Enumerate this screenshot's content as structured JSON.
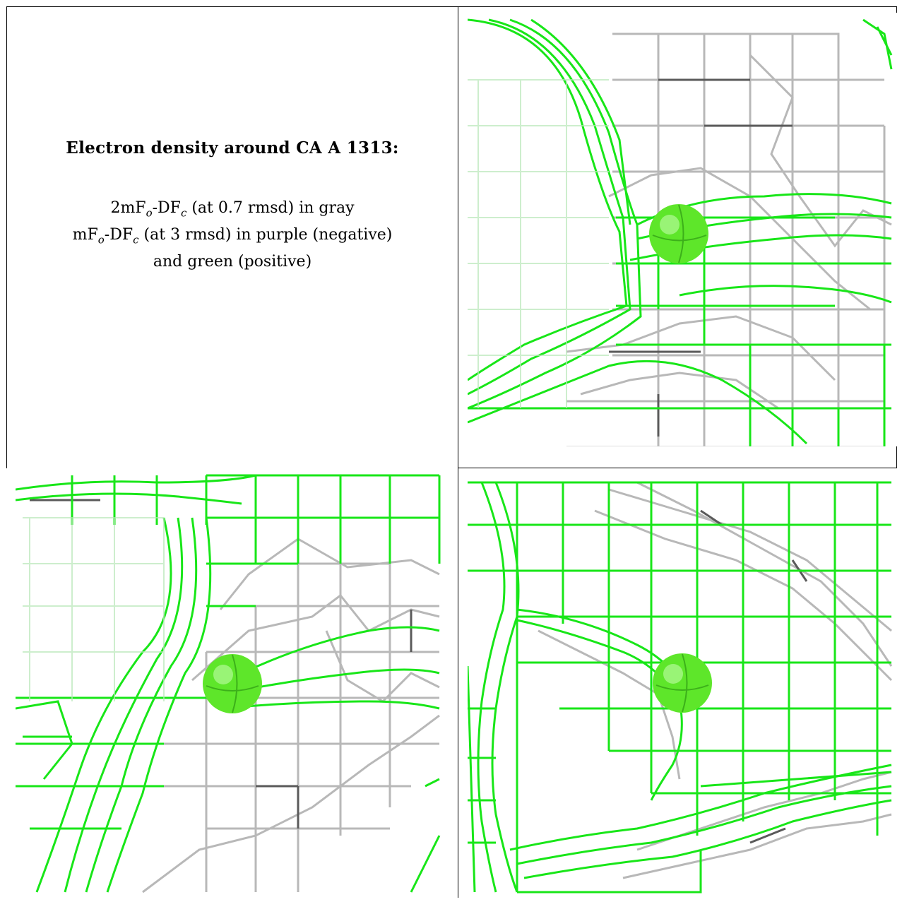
{
  "caption": {
    "title": "Electron density around CA A 1313:",
    "line1": {
      "a": "2mF",
      "b": "o",
      "c": "-DF",
      "d": "c",
      "e": " (at 0.7 rmsd) in gray"
    },
    "line2": {
      "a": "mF",
      "b": "o",
      "c": "-DF",
      "d": "c",
      "e": " (at 3 rmsd) in purple (negative)"
    },
    "line3": "and green (positive)"
  },
  "colors": {
    "green_mesh": "#18e618",
    "gray_mesh": "#b8b8b8",
    "dark_gray_mesh": "#5a5a5a",
    "atom": "#5ee62a",
    "frame": "#000000"
  },
  "panels": [
    {
      "name": "view-top-right",
      "atom_label": "CA A 1313"
    },
    {
      "name": "view-bottom-left",
      "atom_label": "CA A 1313"
    },
    {
      "name": "view-bottom-right",
      "atom_label": "CA A 1313"
    }
  ]
}
